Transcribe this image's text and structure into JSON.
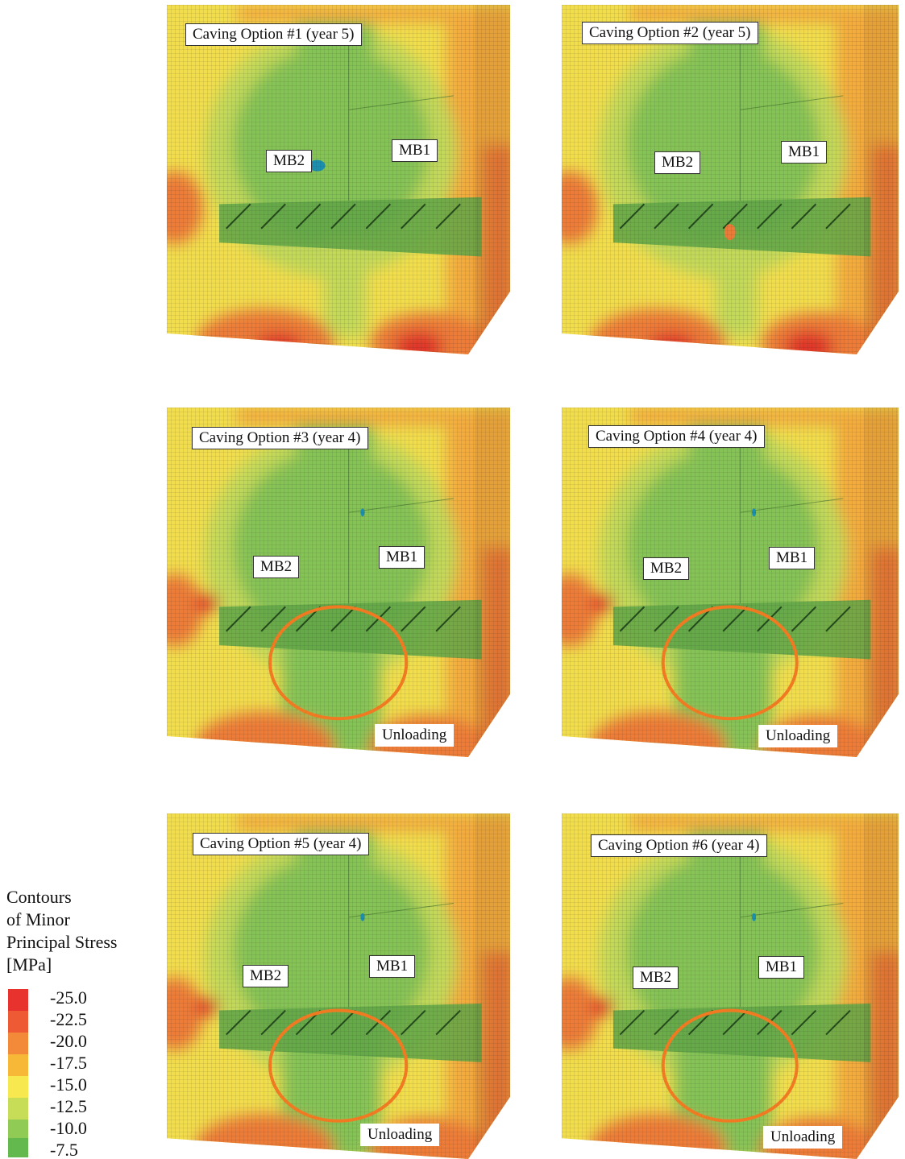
{
  "panels": [
    {
      "title": "Caving Option #1 (year 5)",
      "mb2": "MB2",
      "mb1": "MB1",
      "unloading": "",
      "variant": "a"
    },
    {
      "title": "Caving Option #2 (year 5)",
      "mb2": "MB2",
      "mb1": "MB1",
      "unloading": "",
      "variant": "b"
    },
    {
      "title": "Caving Option #3 (year 4)",
      "mb2": "MB2",
      "mb1": "MB1",
      "unloading": "Unloading",
      "variant": "c"
    },
    {
      "title": "Caving Option #4 (year 4)",
      "mb2": "MB2",
      "mb1": "MB1",
      "unloading": "Unloading",
      "variant": "c"
    },
    {
      "title": "Caving Option #5 (year 4)",
      "mb2": "MB2",
      "mb1": "MB1",
      "unloading": "Unloading",
      "variant": "c"
    },
    {
      "title": "Caving Option #6 (year 4)",
      "mb2": "MB2",
      "mb1": "MB1",
      "unloading": "Unloading",
      "variant": "c"
    }
  ],
  "legend": {
    "title_lines": [
      "Contours",
      "of Minor",
      "Principal Stress",
      "[MPa]"
    ],
    "items": [
      {
        "label": "-25.0",
        "color": "#e8322e"
      },
      {
        "label": "-22.5",
        "color": "#ee5a34"
      },
      {
        "label": "-20.0",
        "color": "#f28a3a"
      },
      {
        "label": "-17.5",
        "color": "#f7b737"
      },
      {
        "label": "-15.0",
        "color": "#f6e84e"
      },
      {
        "label": "-12.5",
        "color": "#c7dd58"
      },
      {
        "label": "-10.0",
        "color": "#8fcb55"
      },
      {
        "label": "-7.5",
        "color": "#63b84e"
      }
    ]
  },
  "colors": {
    "red": "#e0362c",
    "orange": "#ec7b37",
    "amber": "#f3ab3c",
    "yellow": "#f2de4d",
    "lime": "#c3d95a",
    "green": "#86c356",
    "deepgreen": "#6bb652",
    "blue": "#1d8fae",
    "circle": "#f07a22"
  }
}
